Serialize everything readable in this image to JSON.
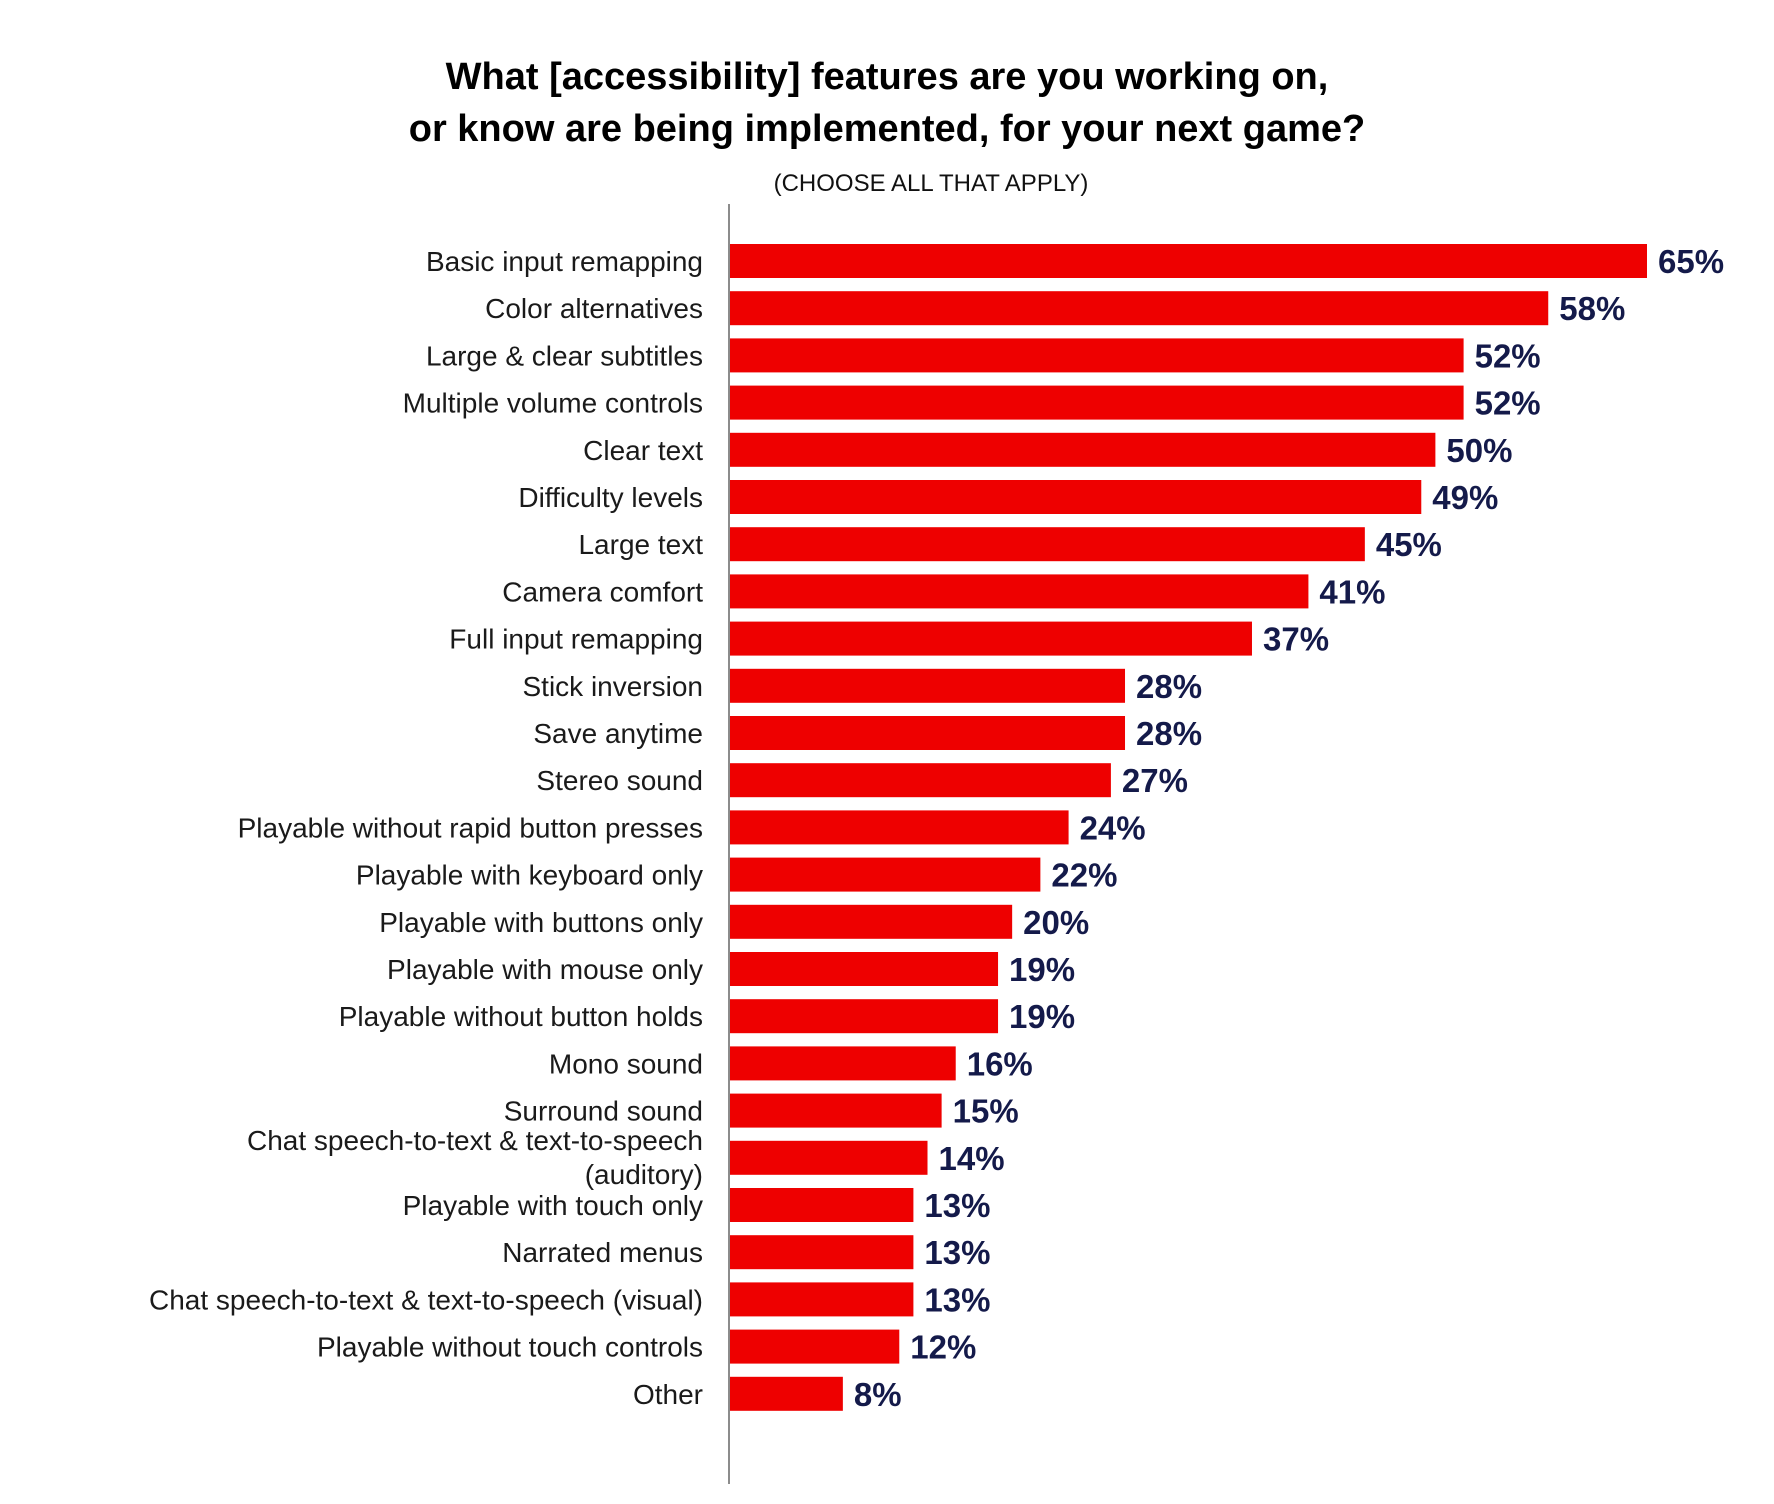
{
  "chart_data": {
    "type": "bar",
    "orientation": "horizontal",
    "title_lines": [
      "What [accessibility] features are you working on,",
      "or know are being implemented, for your next game?"
    ],
    "subtitle": "(CHOOSE ALL THAT APPLY)",
    "bar_color": "#ee0000",
    "value_label_color": "#141a4a",
    "xlim": [
      0,
      65
    ],
    "grid": false,
    "categories": [
      [
        "Basic input remapping"
      ],
      [
        "Color alternatives"
      ],
      [
        "Large & clear subtitles"
      ],
      [
        "Multiple volume controls"
      ],
      [
        "Clear text"
      ],
      [
        "Difficulty levels"
      ],
      [
        "Large text"
      ],
      [
        "Camera comfort"
      ],
      [
        "Full input remapping"
      ],
      [
        "Stick inversion"
      ],
      [
        "Save anytime"
      ],
      [
        "Stereo sound"
      ],
      [
        "Playable without rapid button presses"
      ],
      [
        "Playable with keyboard only"
      ],
      [
        "Playable with buttons only"
      ],
      [
        "Playable with mouse only"
      ],
      [
        "Playable without button holds"
      ],
      [
        "Mono sound"
      ],
      [
        "Surround sound"
      ],
      [
        "Chat speech-to-text & text-to-speech",
        "(auditory)"
      ],
      [
        "Playable with touch only"
      ],
      [
        "Narrated menus"
      ],
      [
        "Chat speech-to-text & text-to-speech (visual)"
      ],
      [
        "Playable without touch controls"
      ],
      [
        "Other"
      ]
    ],
    "values": [
      65,
      58,
      52,
      52,
      50,
      49,
      45,
      41,
      37,
      28,
      28,
      27,
      24,
      22,
      20,
      19,
      19,
      16,
      15,
      14,
      13,
      13,
      13,
      12,
      8
    ],
    "value_labels": [
      "65%",
      "58%",
      "52%",
      "52%",
      "50%",
      "49%",
      "45%",
      "41%",
      "37%",
      "28%",
      "28%",
      "27%",
      "24%",
      "22%",
      "20%",
      "19%",
      "19%",
      "16%",
      "15%",
      "14%",
      "13%",
      "13%",
      "13%",
      "12%",
      "8%"
    ]
  }
}
